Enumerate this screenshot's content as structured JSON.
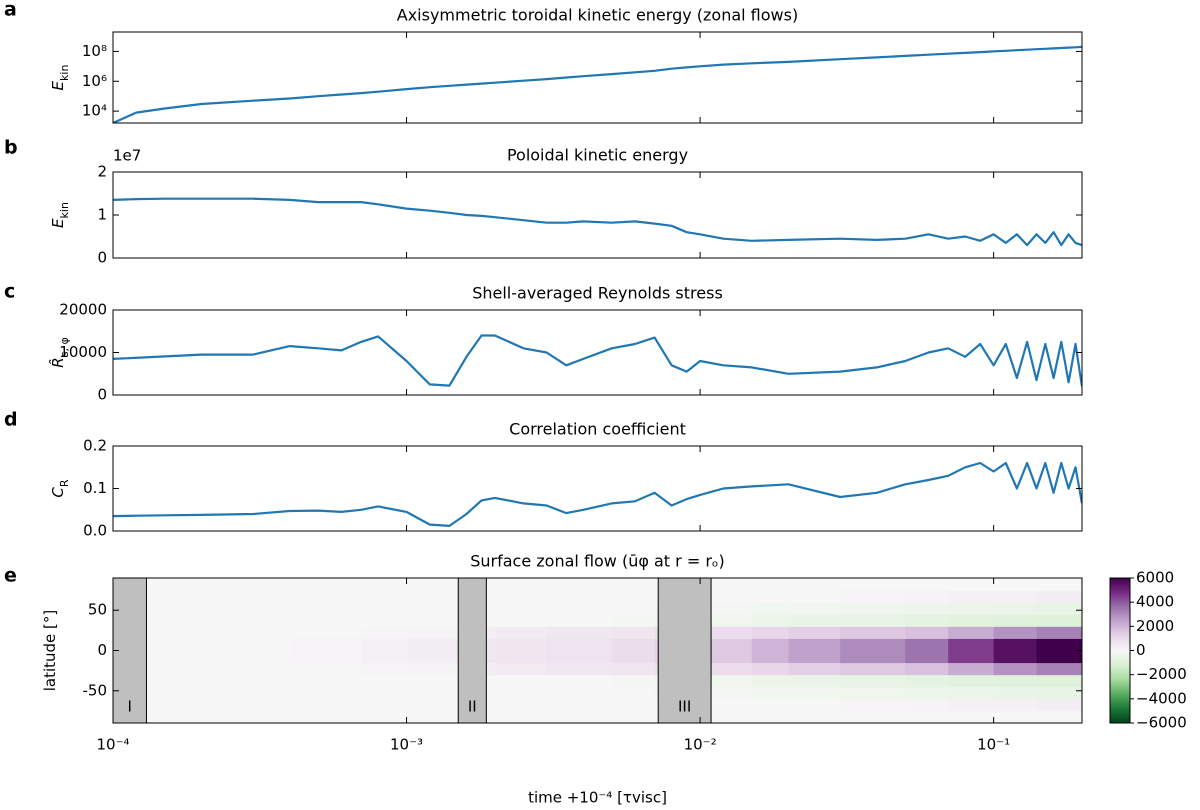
{
  "chart_data": [
    {
      "type": "line",
      "panel": "a",
      "title": "Axisymmetric toroidal kinetic energy (zonal flows)",
      "ylabel": {
        "main": "E",
        "sub": "kin"
      },
      "ylog": true,
      "color": "#1f77b4",
      "xlim": [
        0.0001,
        0.2
      ],
      "xticks": [
        0.001,
        0.01,
        0.1
      ],
      "ylim": [
        1600,
        2000000000
      ],
      "yticks": [
        {
          "value": 10000,
          "label": "10⁴"
        },
        {
          "value": 1000000,
          "label": "10⁶"
        },
        {
          "value": 100000000,
          "label": "10⁸"
        }
      ],
      "x": [
        0.0001,
        0.00012,
        0.00015,
        0.0002,
        0.0003,
        0.0004,
        0.0005,
        0.0006,
        0.0007,
        0.0008,
        0.001,
        0.0012,
        0.0014,
        0.0016,
        0.0018,
        0.002,
        0.0025,
        0.003,
        0.0035,
        0.004,
        0.005,
        0.006,
        0.007,
        0.008,
        0.009,
        0.01,
        0.012,
        0.015,
        0.02,
        0.03,
        0.04,
        0.05,
        0.06,
        0.07,
        0.08,
        0.09,
        0.1,
        0.11,
        0.12,
        0.13,
        0.14,
        0.15,
        0.16,
        0.17,
        0.18,
        0.19,
        0.2
      ],
      "values": [
        1600,
        8000,
        15000,
        30000,
        50000,
        70000,
        100000,
        130000,
        160000,
        200000,
        300000,
        400000,
        500000,
        600000,
        700000,
        800000,
        1100000,
        1400000,
        1800000,
        2200000,
        3000000,
        4000000,
        5000000,
        7000000,
        8500000,
        10000000,
        13000000,
        16000000,
        20000000,
        30000000,
        40000000,
        50000000,
        60000000,
        70000000,
        80000000,
        90000000,
        100000000,
        110000000,
        120000000,
        130000000,
        140000000,
        150000000,
        160000000,
        170000000,
        180000000,
        190000000,
        200000000
      ]
    },
    {
      "type": "line",
      "panel": "b",
      "title": "Poloidal kinetic energy",
      "offset_label": "1e7",
      "ylabel": {
        "main": "E",
        "sub": "kin"
      },
      "color": "#1f77b4",
      "xlim": [
        0.0001,
        0.2
      ],
      "xticks": [
        0.001,
        0.01,
        0.1
      ],
      "ylim": [
        0,
        2
      ],
      "yticks": [
        0,
        1,
        2
      ],
      "x": [
        0.0001,
        0.00012,
        0.00015,
        0.0002,
        0.0003,
        0.0004,
        0.0005,
        0.0006,
        0.0007,
        0.0008,
        0.001,
        0.0012,
        0.0014,
        0.0016,
        0.0018,
        0.002,
        0.0025,
        0.003,
        0.0035,
        0.004,
        0.005,
        0.006,
        0.007,
        0.008,
        0.009,
        0.01,
        0.012,
        0.015,
        0.02,
        0.03,
        0.04,
        0.05,
        0.06,
        0.07,
        0.08,
        0.09,
        0.1,
        0.11,
        0.12,
        0.13,
        0.14,
        0.15,
        0.16,
        0.17,
        0.18,
        0.19,
        0.2
      ],
      "values": [
        1.35,
        1.37,
        1.38,
        1.38,
        1.38,
        1.35,
        1.3,
        1.3,
        1.3,
        1.25,
        1.15,
        1.1,
        1.05,
        1.0,
        0.98,
        0.95,
        0.88,
        0.82,
        0.82,
        0.85,
        0.82,
        0.85,
        0.8,
        0.75,
        0.6,
        0.55,
        0.45,
        0.4,
        0.42,
        0.45,
        0.42,
        0.45,
        0.55,
        0.45,
        0.5,
        0.4,
        0.55,
        0.35,
        0.55,
        0.3,
        0.55,
        0.35,
        0.6,
        0.3,
        0.55,
        0.35,
        0.3
      ]
    },
    {
      "type": "line",
      "panel": "c",
      "title": "Shell-averaged Reynolds stress",
      "ylabel": {
        "main": "R̂",
        "sub": "s, φ"
      },
      "color": "#1f77b4",
      "xlim": [
        0.0001,
        0.2
      ],
      "xticks": [
        0.001,
        0.01,
        0.1
      ],
      "ylim": [
        0,
        20000
      ],
      "yticks": [
        0,
        10000,
        20000
      ],
      "x": [
        0.0001,
        0.0002,
        0.0003,
        0.0004,
        0.0005,
        0.0006,
        0.0007,
        0.0008,
        0.001,
        0.0012,
        0.0014,
        0.0016,
        0.0018,
        0.002,
        0.0025,
        0.003,
        0.0035,
        0.004,
        0.005,
        0.006,
        0.007,
        0.008,
        0.009,
        0.01,
        0.012,
        0.015,
        0.02,
        0.03,
        0.04,
        0.05,
        0.06,
        0.07,
        0.08,
        0.09,
        0.1,
        0.11,
        0.12,
        0.13,
        0.14,
        0.15,
        0.16,
        0.17,
        0.18,
        0.19,
        0.2
      ],
      "values": [
        8500,
        9500,
        9500,
        11500,
        11000,
        10500,
        12500,
        13800,
        8000,
        2500,
        2200,
        9000,
        14000,
        14000,
        11000,
        10000,
        7000,
        8500,
        11000,
        12000,
        13500,
        7000,
        5500,
        8000,
        7000,
        6500,
        5000,
        5500,
        6500,
        8000,
        10000,
        11000,
        9000,
        12000,
        7000,
        12000,
        4000,
        12500,
        3500,
        12000,
        4000,
        12500,
        3000,
        12000,
        2000
      ]
    },
    {
      "type": "line",
      "panel": "d",
      "title": "Correlation coefficient",
      "ylabel": {
        "main": "C",
        "sub": "R"
      },
      "color": "#1f77b4",
      "xlim": [
        0.0001,
        0.2
      ],
      "xticks": [
        0.001,
        0.01,
        0.1
      ],
      "ylim": [
        0,
        0.2
      ],
      "yticks": [
        {
          "value": 0,
          "label": "0.0"
        },
        0.1,
        0.2
      ],
      "x": [
        0.0001,
        0.00012,
        0.00015,
        0.0002,
        0.0003,
        0.0004,
        0.0005,
        0.0006,
        0.0007,
        0.0008,
        0.001,
        0.0012,
        0.0014,
        0.0016,
        0.0018,
        0.002,
        0.0025,
        0.003,
        0.0035,
        0.004,
        0.005,
        0.006,
        0.007,
        0.008,
        0.009,
        0.01,
        0.012,
        0.015,
        0.02,
        0.03,
        0.04,
        0.05,
        0.06,
        0.07,
        0.08,
        0.09,
        0.1,
        0.11,
        0.12,
        0.13,
        0.14,
        0.15,
        0.16,
        0.17,
        0.18,
        0.19,
        0.2
      ],
      "values": [
        0.035,
        0.036,
        0.037,
        0.038,
        0.04,
        0.047,
        0.048,
        0.045,
        0.05,
        0.058,
        0.045,
        0.015,
        0.012,
        0.04,
        0.072,
        0.078,
        0.065,
        0.06,
        0.042,
        0.05,
        0.065,
        0.07,
        0.09,
        0.06,
        0.075,
        0.085,
        0.1,
        0.105,
        0.11,
        0.08,
        0.09,
        0.11,
        0.12,
        0.13,
        0.15,
        0.16,
        0.14,
        0.16,
        0.1,
        0.16,
        0.1,
        0.16,
        0.09,
        0.16,
        0.1,
        0.15,
        0.065
      ]
    },
    {
      "type": "heatmap",
      "panel": "e",
      "title": "Surface zonal flow (ūφ at r = rₒ)",
      "ylabel": {
        "main": "latitude [°]",
        "sub": ""
      },
      "xlabel": "time +10⁻⁴ [τvisc]",
      "xlim": [
        0.0001,
        0.2
      ],
      "xticks": [
        {
          "value": 0.0001,
          "label": "10⁻⁴"
        },
        {
          "value": 0.001,
          "label": "10⁻³"
        },
        {
          "value": 0.01,
          "label": "10⁻²"
        },
        {
          "value": 0.1,
          "label": "10⁻¹"
        }
      ],
      "ylim": [
        -90,
        90
      ],
      "yticks": [
        -50,
        0,
        50
      ],
      "x_edges": [
        0.0001,
        0.0002,
        0.0004,
        0.0007,
        0.001,
        0.0015,
        0.002,
        0.003,
        0.005,
        0.007,
        0.01,
        0.015,
        0.02,
        0.03,
        0.05,
        0.07,
        0.1,
        0.14,
        0.2
      ],
      "y_edges": [
        -90,
        -75,
        -60,
        -45,
        -30,
        -15,
        0,
        15,
        30,
        45,
        60,
        75,
        90
      ],
      "z": [
        [
          0,
          0,
          0,
          0,
          0,
          0,
          0,
          0,
          0,
          0,
          0,
          0,
          0,
          0,
          0,
          0,
          0,
          0
        ],
        [
          0,
          0,
          0,
          0,
          0,
          0,
          0,
          0,
          0,
          0,
          0,
          0,
          0,
          100,
          150,
          200,
          250,
          300
        ],
        [
          0,
          0,
          0,
          0,
          0,
          0,
          0,
          0,
          0,
          -100,
          -150,
          -200,
          -250,
          -300,
          -350,
          -400,
          -500,
          -600
        ],
        [
          0,
          0,
          0,
          0,
          0,
          0,
          0,
          0,
          -100,
          -200,
          -300,
          -400,
          -500,
          -600,
          -700,
          -800,
          -900,
          -1000
        ],
        [
          0,
          0,
          0,
          100,
          150,
          300,
          400,
          500,
          600,
          800,
          900,
          1100,
          1300,
          1500,
          1700,
          2200,
          2800,
          3200
        ],
        [
          0,
          0,
          100,
          200,
          300,
          500,
          600,
          700,
          900,
          1200,
          1500,
          2000,
          2500,
          3000,
          3500,
          4500,
          5500,
          6000
        ],
        [
          0,
          0,
          100,
          200,
          300,
          500,
          600,
          700,
          900,
          1200,
          1500,
          2000,
          2500,
          3000,
          3500,
          4500,
          5500,
          6000
        ],
        [
          0,
          0,
          0,
          100,
          150,
          300,
          400,
          500,
          600,
          800,
          900,
          1100,
          1300,
          1500,
          1700,
          2200,
          2800,
          3200
        ],
        [
          0,
          0,
          0,
          0,
          0,
          0,
          0,
          0,
          -100,
          -200,
          -300,
          -400,
          -500,
          -600,
          -700,
          -800,
          -900,
          -1000
        ],
        [
          0,
          0,
          0,
          0,
          0,
          0,
          0,
          0,
          0,
          -100,
          -150,
          -200,
          -250,
          -300,
          -350,
          -400,
          -500,
          -600
        ],
        [
          0,
          0,
          0,
          0,
          0,
          0,
          0,
          0,
          0,
          0,
          0,
          0,
          0,
          100,
          150,
          200,
          250,
          300
        ],
        [
          0,
          0,
          0,
          0,
          0,
          0,
          0,
          0,
          0,
          0,
          0,
          0,
          0,
          0,
          0,
          0,
          0,
          0
        ]
      ],
      "colormap": [
        "#00441b",
        "#1b7837",
        "#5aae61",
        "#a6dba0",
        "#d9f0d3",
        "#f7f7f7",
        "#e7d4e8",
        "#c2a5cf",
        "#9970ab",
        "#762a83",
        "#40004b"
      ],
      "clim": [
        -6000,
        6000
      ],
      "cticks": [
        6000,
        4000,
        2000,
        0,
        {
          "value": -2000,
          "label": "−2000"
        },
        {
          "value": -4000,
          "label": "−4000"
        },
        {
          "value": -6000,
          "label": "−6000"
        }
      ],
      "spans": [
        {
          "x": [
            0.0001,
            0.00013
          ],
          "label": "I"
        },
        {
          "x": [
            0.0015,
            0.00187
          ],
          "label": "II"
        },
        {
          "x": [
            0.0072,
            0.0109
          ],
          "label": "III"
        }
      ],
      "span_color": "#bfbfbf"
    }
  ]
}
